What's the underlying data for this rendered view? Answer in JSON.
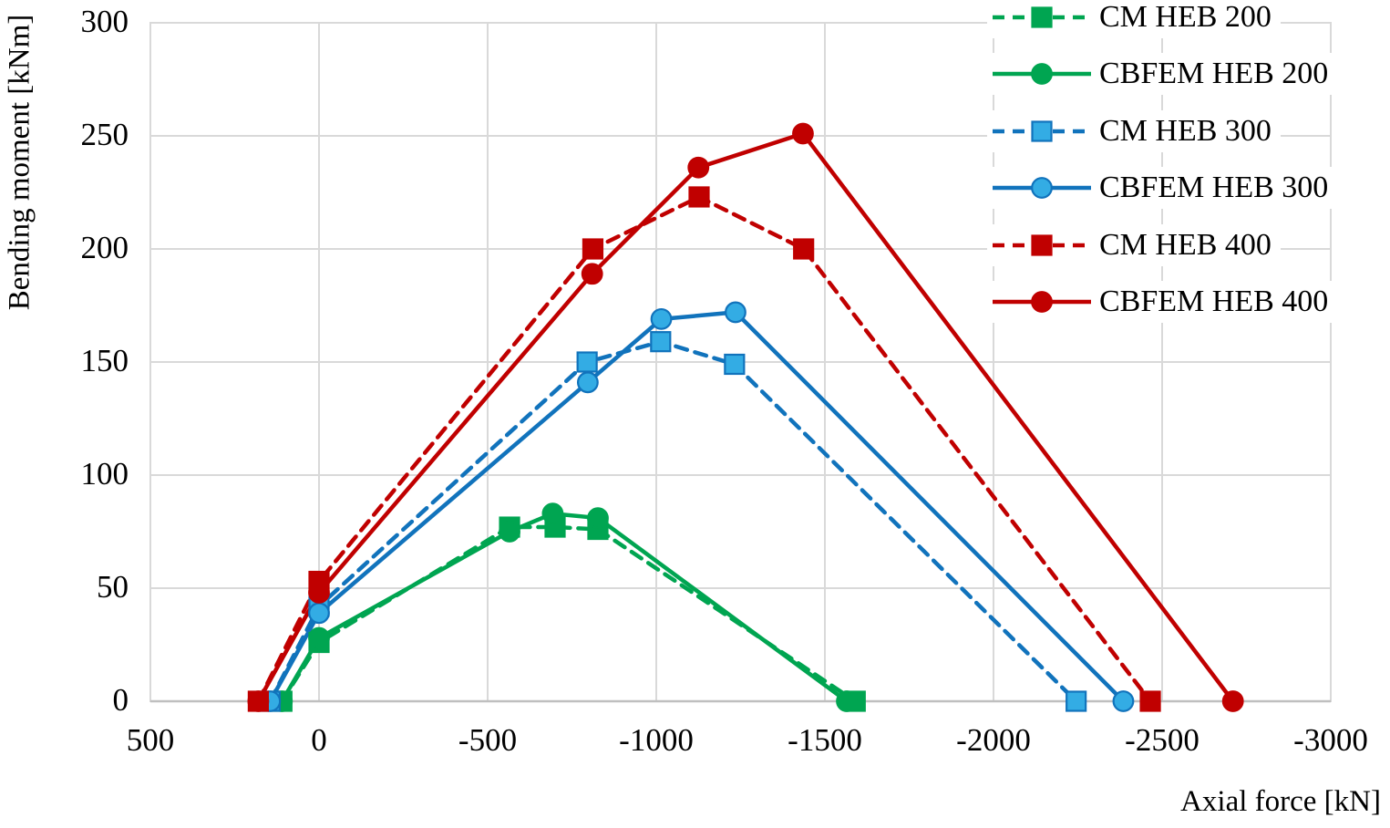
{
  "chart_data": {
    "type": "line",
    "title": "",
    "xlabel": "Axial force [kN]",
    "ylabel": "Bending moment [kNm]",
    "xlim": [
      500,
      -3000
    ],
    "ylim": [
      0,
      300
    ],
    "x_ticks": [
      500,
      0,
      -500,
      -1000,
      -1500,
      -2000,
      -2500,
      -3000
    ],
    "x_tick_labels": [
      "500",
      "0",
      "-500",
      "-1000",
      "-1500",
      "-2000",
      "-2500",
      "-3000"
    ],
    "y_ticks": [
      0,
      50,
      100,
      150,
      200,
      250,
      300
    ],
    "y_tick_labels": [
      "0",
      "50",
      "100",
      "150",
      "200",
      "250",
      "300"
    ],
    "grid": "both",
    "legend_position": "top-right",
    "series": [
      {
        "name": "CM HEB 200",
        "line_style": "dashed",
        "marker": "square",
        "color": "#00A551",
        "marker_fill": "#00A551",
        "points": [
          [
            110,
            0
          ],
          [
            0,
            26
          ],
          [
            -565,
            77
          ],
          [
            -700,
            77
          ],
          [
            -827,
            76
          ],
          [
            -1590,
            0
          ]
        ]
      },
      {
        "name": "CBFEM HEB 200",
        "line_style": "solid",
        "marker": "circle",
        "color": "#00A551",
        "marker_fill": "#00A551",
        "points": [
          [
            110,
            0
          ],
          [
            0,
            28
          ],
          [
            -565,
            75
          ],
          [
            -693,
            83
          ],
          [
            -827,
            81
          ],
          [
            -1565,
            0
          ]
        ]
      },
      {
        "name": "CM HEB 300",
        "line_style": "dashed",
        "marker": "square",
        "color": "#1173BC",
        "marker_fill": "#33ACE4",
        "points": [
          [
            145,
            0
          ],
          [
            0,
            42
          ],
          [
            -795,
            150
          ],
          [
            -1013,
            159
          ],
          [
            -1232,
            149
          ],
          [
            -2245,
            0
          ]
        ]
      },
      {
        "name": "CBFEM HEB 300",
        "line_style": "solid",
        "marker": "circle",
        "color": "#1173BC",
        "marker_fill": "#33ACE4",
        "points": [
          [
            145,
            0
          ],
          [
            0,
            39
          ],
          [
            -797,
            141
          ],
          [
            -1015,
            169
          ],
          [
            -1235,
            172
          ],
          [
            -2385,
            0
          ]
        ]
      },
      {
        "name": "CM HEB 400",
        "line_style": "dashed",
        "marker": "square",
        "color": "#C00000",
        "marker_fill": "#C00000",
        "points": [
          [
            180,
            0
          ],
          [
            0,
            53
          ],
          [
            -812,
            200
          ],
          [
            -1127,
            223
          ],
          [
            -1437,
            200
          ],
          [
            -2465,
            0
          ]
        ]
      },
      {
        "name": "CBFEM HEB 400",
        "line_style": "solid",
        "marker": "circle",
        "color": "#C00000",
        "marker_fill": "#C00000",
        "points": [
          [
            180,
            0
          ],
          [
            0,
            48
          ],
          [
            -810,
            189
          ],
          [
            -1125,
            236
          ],
          [
            -1435,
            251
          ],
          [
            -2710,
            0
          ]
        ]
      }
    ]
  },
  "colors": {
    "grid": "#D9D9D9",
    "axis": "#BFBFBF",
    "text": "#000000",
    "background": "#FFFFFF"
  }
}
